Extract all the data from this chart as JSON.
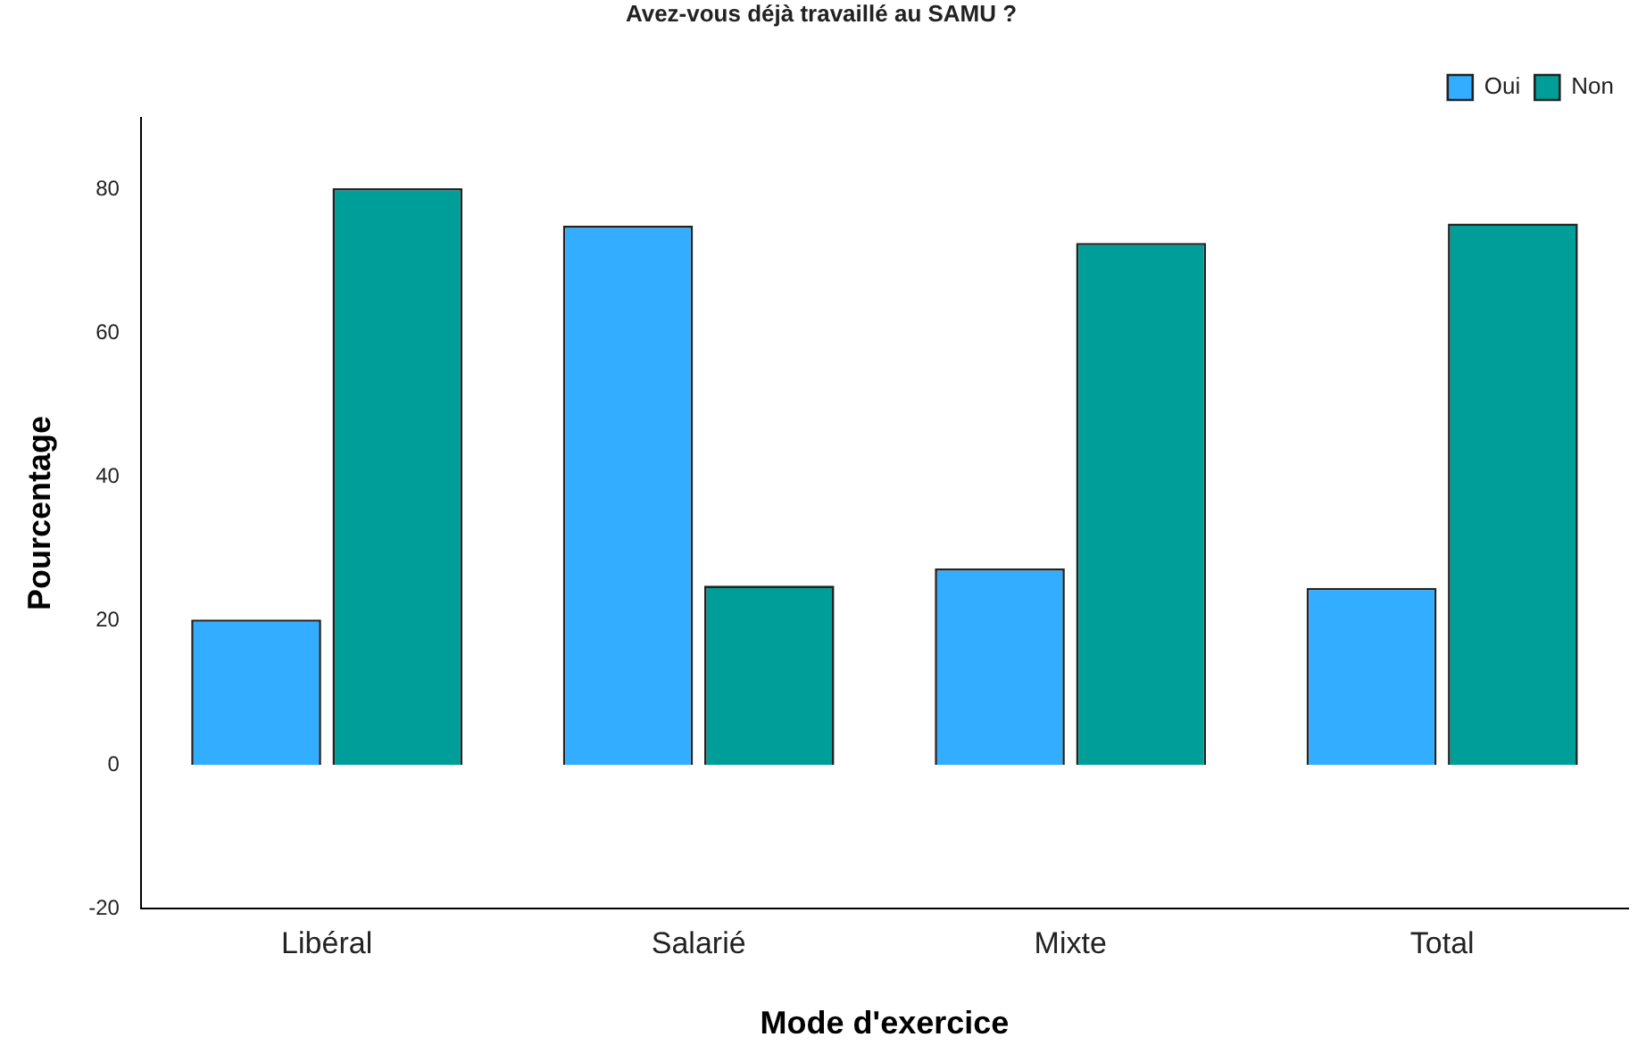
{
  "chart_data": {
    "type": "bar",
    "xlabel": "Mode d'exercice",
    "ylabel": "Pourcentage",
    "legend_title": "Avez-vous déjà travaillé au SAMU ?",
    "legend": "top right",
    "grid": false,
    "categories": [
      "Libéral",
      "Salarié",
      "Mixte",
      "Total"
    ],
    "series": [
      {
        "name": "Oui",
        "color": "#33adff",
        "values": [
          20.2,
          75.0,
          27.3,
          24.6
        ]
      },
      {
        "name": "Non",
        "color": "#009e99",
        "values": [
          80.2,
          24.9,
          72.6,
          75.3
        ]
      }
    ],
    "ylim": [
      -20,
      90
    ],
    "yticks": [
      -20,
      0,
      20,
      40,
      60,
      80
    ]
  }
}
